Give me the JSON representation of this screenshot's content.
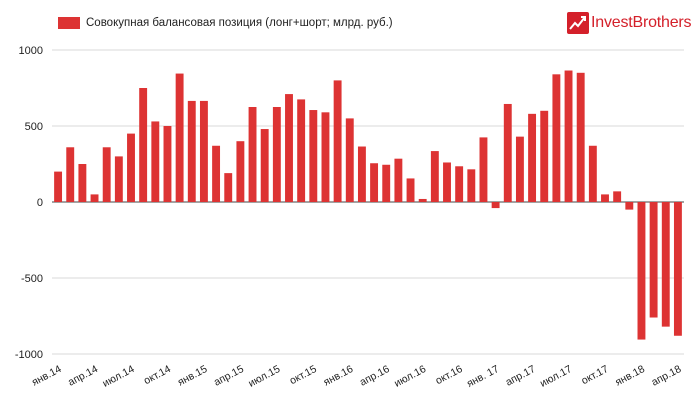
{
  "logo": {
    "text": "InvestBrothers",
    "color": "#d4202a",
    "icon": "chart-up-icon"
  },
  "chart_data": {
    "type": "bar",
    "title": "",
    "xlabel": "",
    "ylabel": "",
    "legend": {
      "label": "Совокупная балансовая позиция (лонг+шорт; млрд. руб.)",
      "position": "top-left"
    },
    "color": "#dd3333",
    "grid": true,
    "ylim": [
      -1000,
      1000
    ],
    "yticks": [
      -1000,
      -500,
      0,
      500,
      1000
    ],
    "ytick_labels": [
      "-1000",
      "-500",
      "0",
      "500",
      "1000"
    ],
    "xtick_labels": [
      {
        "index": 0,
        "label": "янв.14"
      },
      {
        "index": 3,
        "label": "апр.14"
      },
      {
        "index": 6,
        "label": "июл.14"
      },
      {
        "index": 9,
        "label": "окт.14"
      },
      {
        "index": 12,
        "label": "янв.15"
      },
      {
        "index": 15,
        "label": "апр.15"
      },
      {
        "index": 18,
        "label": "июл.15"
      },
      {
        "index": 21,
        "label": "окт.15"
      },
      {
        "index": 24,
        "label": "янв.16"
      },
      {
        "index": 27,
        "label": "апр.16"
      },
      {
        "index": 30,
        "label": "июл.16"
      },
      {
        "index": 33,
        "label": "окт.16"
      },
      {
        "index": 36,
        "label": "янв. 17"
      },
      {
        "index": 39,
        "label": "апр.17"
      },
      {
        "index": 42,
        "label": "июл.17"
      },
      {
        "index": 45,
        "label": "окт.17"
      },
      {
        "index": 48,
        "label": "янв.18"
      },
      {
        "index": 51,
        "label": "апр.18"
      }
    ],
    "series": [
      {
        "values": [
          200,
          360,
          250,
          50,
          360,
          300,
          450,
          750,
          530,
          500,
          845,
          665,
          665,
          370,
          190,
          400,
          625,
          480,
          625,
          710,
          675,
          605,
          590,
          800,
          550,
          365,
          255,
          245,
          285,
          155,
          20,
          335,
          260,
          235,
          215,
          425,
          -40,
          645,
          430,
          580,
          600,
          840,
          865,
          850,
          370,
          50,
          70,
          -50,
          -905,
          -760,
          -820,
          -880
        ]
      }
    ]
  }
}
